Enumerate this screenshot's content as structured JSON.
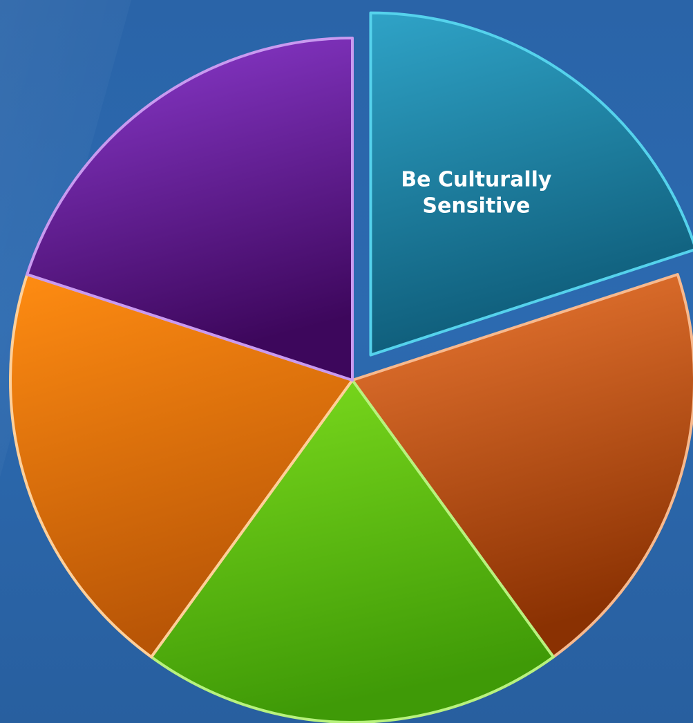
{
  "chart_data": {
    "type": "pie",
    "exploded_slice": 0,
    "slices": [
      {
        "label": "Be Culturally",
        "label2": "Sensitive",
        "value": 20,
        "color_top": "#2fa3c7",
        "color_bottom": "#0e5b78",
        "edge": "#55d2ec"
      },
      {
        "label": "",
        "label2": "",
        "value": 20,
        "color_top": "#ee7a34",
        "color_bottom": "#8a3102",
        "edge": "#f7b98e"
      },
      {
        "label": "",
        "label2": "",
        "value": 20,
        "color_top": "#7ddc1e",
        "color_bottom": "#3f9a07",
        "edge": "#b8f27e"
      },
      {
        "label": "",
        "label2": "",
        "value": 20,
        "color_top": "#ff8c12",
        "color_bottom": "#b85506",
        "edge": "#ffd09a"
      },
      {
        "label": "",
        "label2": "",
        "value": 20,
        "color_top": "#8d3bd0",
        "color_bottom": "#3d075c",
        "edge": "#c99af0"
      }
    ]
  }
}
